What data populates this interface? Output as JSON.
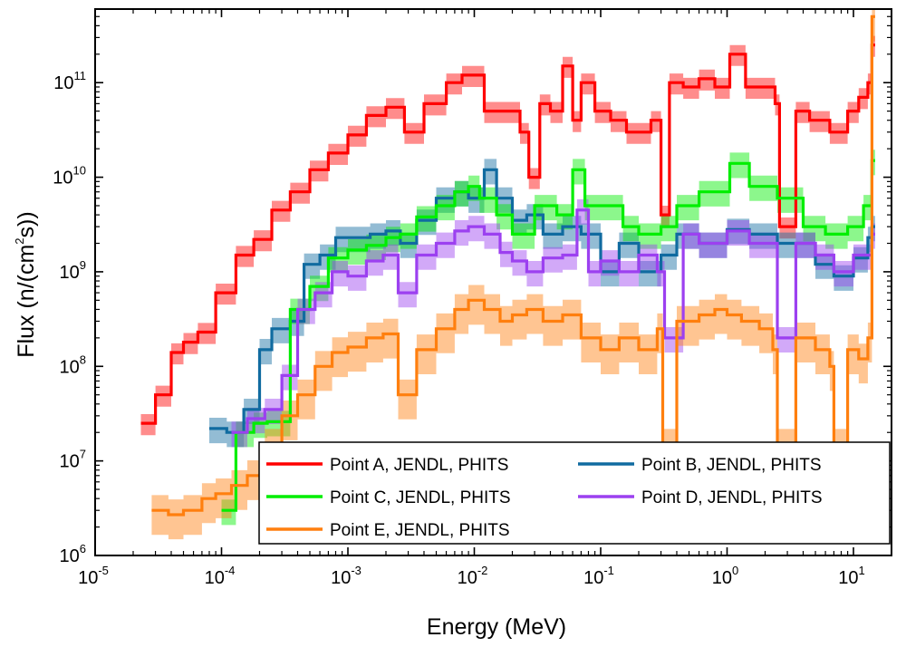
{
  "chart_data": {
    "type": "line",
    "step": true,
    "xscale": "log",
    "yscale": "log",
    "xlabel": "Energy (MeV)",
    "ylabel": {
      "prefix": "Flux (n/(cm",
      "sup": "2",
      "suffix": "s))"
    },
    "xlim": [
      1e-05,
      20
    ],
    "ylim": [
      1000000.0,
      600000000000.0
    ],
    "xticks": [
      {
        "base": "10",
        "exp": "-5",
        "value": 1e-05
      },
      {
        "base": "10",
        "exp": "-4",
        "value": 0.0001
      },
      {
        "base": "10",
        "exp": "-3",
        "value": 0.001
      },
      {
        "base": "10",
        "exp": "-2",
        "value": 0.01
      },
      {
        "base": "10",
        "exp": "-1",
        "value": 0.1
      },
      {
        "base": "10",
        "exp": "0",
        "value": 1
      },
      {
        "base": "10",
        "exp": "1",
        "value": 10
      }
    ],
    "yticks": [
      {
        "base": "10",
        "exp": "6",
        "value": 1000000.0
      },
      {
        "base": "10",
        "exp": "7",
        "value": 10000000.0
      },
      {
        "base": "10",
        "exp": "8",
        "value": 100000000.0
      },
      {
        "base": "10",
        "exp": "9",
        "value": 1000000000.0
      },
      {
        "base": "10",
        "exp": "10",
        "value": 10000000000.0
      },
      {
        "base": "10",
        "exp": "11",
        "value": 100000000000.0
      }
    ],
    "legend_position": "bottom-right",
    "series": [
      {
        "name": "Point A, JENDL, PHITS",
        "color": "#ff0000",
        "band_fraction": 0.25,
        "x": [
          2.3e-05,
          3e-05,
          4e-05,
          5e-05,
          6.5e-05,
          9e-05,
          0.00013,
          0.00018,
          0.00025,
          0.00035,
          0.0005,
          0.0007,
          0.001,
          0.0014,
          0.002,
          0.0028,
          0.004,
          0.006,
          0.008,
          0.012,
          0.017,
          0.023,
          0.027,
          0.033,
          0.04,
          0.05,
          0.06,
          0.07,
          0.09,
          0.12,
          0.16,
          0.2,
          0.25,
          0.3,
          0.35,
          0.45,
          0.6,
          0.8,
          1.05,
          1.4,
          1.9,
          2.4,
          2.6,
          3.5,
          4.5,
          6.5,
          7.5,
          9,
          11,
          13,
          14
        ],
        "y": [
          25000000.0,
          50000000.0,
          140000000.0,
          180000000.0,
          230000000.0,
          600000000.0,
          1500000000.0,
          2200000000.0,
          4500000000.0,
          7000000000.0,
          12000000000.0,
          18000000000.0,
          28000000000.0,
          45000000000.0,
          55000000000.0,
          30000000000.0,
          60000000000.0,
          100000000000.0,
          120000000000.0,
          50000000000.0,
          50000000000.0,
          30000000000.0,
          10000000000.0,
          60000000000.0,
          50000000000.0,
          150000000000.0,
          40000000000.0,
          100000000000.0,
          50000000000.0,
          40000000000.0,
          30000000000.0,
          30000000000.0,
          40000000000.0,
          4000000000.0,
          100000000000.0,
          90000000000.0,
          110000000000.0,
          90000000000.0,
          200000000000.0,
          90000000000.0,
          90000000000.0,
          60000000000.0,
          3000000000.0,
          50000000000.0,
          40000000000.0,
          30000000000.0,
          30000000000.0,
          50000000000.0,
          70000000000.0,
          100000000000.0,
          250000000000.0
        ]
      },
      {
        "name": "Point B, JENDL, PHITS",
        "color": "#106ba0",
        "band_fraction": 0.3,
        "x": [
          8e-05,
          0.00011,
          0.00015,
          0.0002,
          0.00025,
          0.00035,
          0.00045,
          0.0006,
          0.0008,
          0.0011,
          0.0015,
          0.002,
          0.0026,
          0.0035,
          0.005,
          0.007,
          0.009,
          0.012,
          0.015,
          0.02,
          0.026,
          0.035,
          0.05,
          0.07,
          0.1,
          0.14,
          0.2,
          0.3,
          0.4,
          0.6,
          1,
          1.5,
          2.5,
          3.5,
          5,
          7,
          10,
          13,
          14
        ],
        "y": [
          22000000.0,
          20000000.0,
          35000000.0,
          150000000.0,
          250000000.0,
          300000000.0,
          1200000000.0,
          1500000000.0,
          2300000000.0,
          2300000000.0,
          2500000000.0,
          2700000000.0,
          2000000000.0,
          3500000000.0,
          6000000000.0,
          7000000000.0,
          6000000000.0,
          12000000000.0,
          6000000000.0,
          3500000000.0,
          4000000000.0,
          2500000000.0,
          3000000000.0,
          2500000000.0,
          1000000000.0,
          2000000000.0,
          1000000000.0,
          1500000000.0,
          2500000000.0,
          2000000000.0,
          2800000000.0,
          2500000000.0,
          2000000000.0,
          2000000000.0,
          1200000000.0,
          900000000.0,
          1400000000.0,
          2300000000.0,
          3000000000.0
        ]
      },
      {
        "name": "Point C, JENDL, PHITS",
        "color": "#00ee00",
        "band_fraction": 0.3,
        "x": [
          0.0001,
          0.00013,
          0.00018,
          0.00023,
          0.00035,
          0.0005,
          0.0007,
          0.001,
          0.0014,
          0.002,
          0.0026,
          0.0035,
          0.005,
          0.007,
          0.009,
          0.011,
          0.015,
          0.02,
          0.03,
          0.045,
          0.06,
          0.075,
          0.1,
          0.15,
          0.2,
          0.3,
          0.4,
          0.6,
          1.05,
          1.5,
          2.5,
          4,
          6,
          9,
          12,
          14
        ],
        "y": [
          3000000.0,
          20000000.0,
          25000000.0,
          26000000.0,
          400000000.0,
          700000000.0,
          1400000000.0,
          1700000000.0,
          1900000000.0,
          2300000000.0,
          2500000000.0,
          3800000000.0,
          5000000000.0,
          7000000000.0,
          8000000000.0,
          6000000000.0,
          4000000000.0,
          2500000000.0,
          5000000000.0,
          4000000000.0,
          12000000000.0,
          5000000000.0,
          5000000000.0,
          3000000000.0,
          2500000000.0,
          3000000000.0,
          5000000000.0,
          7000000000.0,
          14000000000.0,
          8000000000.0,
          6000000000.0,
          3000000000.0,
          2500000000.0,
          3000000000.0,
          5000000000.0,
          15000000000.0
        ]
      },
      {
        "name": "Point D, JENDL, PHITS",
        "color": "#9c40f0",
        "band_fraction": 0.3,
        "x": [
          0.00012,
          0.00016,
          0.00022,
          0.0003,
          0.0004,
          0.00055,
          0.00075,
          0.001,
          0.0014,
          0.0019,
          0.0025,
          0.0035,
          0.005,
          0.007,
          0.009,
          0.012,
          0.016,
          0.02,
          0.026,
          0.035,
          0.05,
          0.065,
          0.08,
          0.1,
          0.14,
          0.2,
          0.28,
          0.32,
          0.45,
          0.6,
          1,
          1.5,
          2.3,
          2.5,
          3.5,
          5,
          7,
          10,
          14
        ],
        "y": [
          20000000.0,
          28000000.0,
          35000000.0,
          80000000.0,
          400000000.0,
          600000000.0,
          1000000000.0,
          900000000.0,
          1300000000.0,
          1500000000.0,
          600000000.0,
          1500000000.0,
          2000000000.0,
          2700000000.0,
          3000000000.0,
          2500000000.0,
          1600000000.0,
          1300000000.0,
          1000000000.0,
          1400000000.0,
          1500000000.0,
          4500000000.0,
          1000000000.0,
          1300000000.0,
          1000000000.0,
          1500000000.0,
          1000000000.0,
          200000000.0,
          2500000000.0,
          2000000000.0,
          2700000000.0,
          2000000000.0,
          2000000000.0,
          200000000.0,
          2000000000.0,
          1500000000.0,
          1000000000.0,
          1500000000.0,
          2500000000.0
        ]
      },
      {
        "name": "Point E, JENDL, PHITS",
        "color": "#ff7f0e",
        "band_fraction": 0.45,
        "x": [
          2.8e-05,
          3.8e-05,
          5e-05,
          7e-05,
          9e-05,
          0.00012,
          0.00016,
          0.00022,
          0.0003,
          0.0004,
          0.00055,
          0.00075,
          0.001,
          0.0014,
          0.0019,
          0.0025,
          0.0035,
          0.005,
          0.007,
          0.009,
          0.012,
          0.016,
          0.02,
          0.026,
          0.035,
          0.05,
          0.07,
          0.1,
          0.14,
          0.2,
          0.28,
          0.31,
          0.4,
          0.6,
          0.8,
          1,
          1.3,
          1.8,
          2.3,
          2.5,
          3.5,
          5,
          6.5,
          7,
          9,
          11,
          13,
          14
        ],
        "y": [
          3000000.0,
          2700000.0,
          3000000.0,
          4000000.0,
          4500000.0,
          5500000.0,
          7000000.0,
          15000000.0,
          30000000.0,
          50000000.0,
          100000000.0,
          140000000.0,
          160000000.0,
          200000000.0,
          220000000.0,
          50000000.0,
          150000000.0,
          250000000.0,
          400000000.0,
          500000000.0,
          400000000.0,
          300000000.0,
          350000000.0,
          400000000.0,
          300000000.0,
          350000000.0,
          200000000.0,
          150000000.0,
          200000000.0,
          150000000.0,
          250000000.0,
          15000000.0,
          300000000.0,
          350000000.0,
          400000000.0,
          350000000.0,
          300000000.0,
          250000000.0,
          150000000.0,
          15000000.0,
          200000000.0,
          150000000.0,
          100000000.0,
          15000000.0,
          150000000.0,
          120000000.0,
          200000000.0,
          500000000000.0
        ]
      }
    ]
  }
}
